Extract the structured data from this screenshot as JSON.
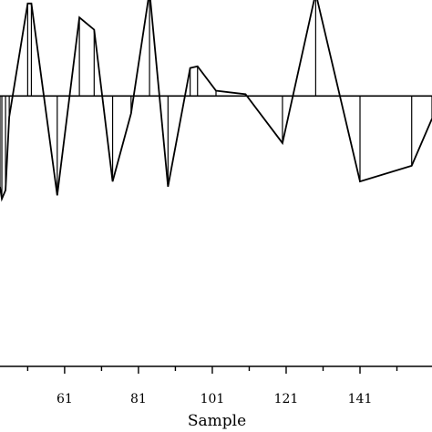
{
  "chart_data": {
    "type": "line",
    "title": "",
    "xlabel": "Sample",
    "ylabel": "",
    "xlim": [
      43.5,
      160.5
    ],
    "ylim": [
      -1.55,
      0.55
    ],
    "x_ticks": [
      61,
      81,
      101,
      121,
      141
    ],
    "grid": false,
    "legend": "none",
    "line_color": "#000000",
    "series": [
      {
        "x": [
          43.5,
          44,
          45,
          46,
          51,
          52,
          59,
          65,
          69,
          74,
          79,
          84,
          89,
          95,
          97,
          102,
          110,
          120,
          129,
          141,
          155,
          160.5
        ],
        "y": [
          -0.52,
          -0.59,
          -0.54,
          -0.12,
          0.53,
          0.53,
          -0.57,
          0.45,
          0.38,
          -0.49,
          -0.1,
          0.6,
          -0.52,
          0.16,
          0.17,
          0.03,
          0.01,
          -0.27,
          0.59,
          -0.49,
          -0.4,
          -0.13
        ]
      }
    ]
  }
}
